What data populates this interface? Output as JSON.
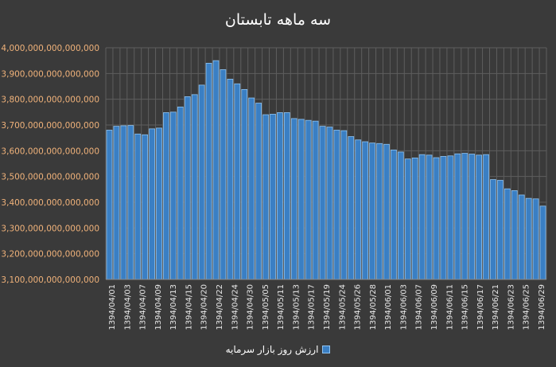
{
  "chart_data": {
    "type": "bar",
    "title": "سه ماهه تابستان",
    "xlabel": "",
    "ylabel": "",
    "ylim": [
      3100000000000000,
      4000000000000000
    ],
    "yticks": [
      3100000000000000,
      3200000000000000,
      3300000000000000,
      3400000000000000,
      3500000000000000,
      3600000000000000,
      3700000000000000,
      3800000000000000,
      3900000000000000,
      4000000000000000
    ],
    "ytick_labels": [
      "3,100,000,000,000,000",
      "3,200,000,000,000,000",
      "3,300,000,000,000,000",
      "3,400,000,000,000,000",
      "3,500,000,000,000,000",
      "3,600,000,000,000,000",
      "3,700,000,000,000,000",
      "3,800,000,000,000,000",
      "3,900,000,000,000,000",
      "4,000,000,000,000,000"
    ],
    "grid": true,
    "legend": "bottom",
    "x_tick_labels": [
      "1394/04/01",
      "1394/04/03",
      "1394/04/07",
      "1394/04/09",
      "1394/04/13",
      "1394/04/15",
      "1394/04/20",
      "1394/04/22",
      "1394/04/24",
      "1394/04/30",
      "1394/05/05",
      "1394/05/11",
      "1394/05/13",
      "1394/05/17",
      "1394/05/19",
      "1394/05/24",
      "1394/05/26",
      "1394/05/28",
      "1394/06/01",
      "1394/06/03",
      "1394/06/07",
      "1394/06/09",
      "1394/06/11",
      "1394/06/15",
      "1394/06/17",
      "1394/06/21",
      "1394/06/23",
      "1394/06/25",
      "1394/06/29"
    ],
    "series": [
      {
        "name": "ارزش روز بازار سرمایه",
        "color": "#3a7fc4",
        "values": [
          3680000000000000,
          3695000000000000,
          3697000000000000,
          3698000000000000,
          3665000000000000,
          3662000000000000,
          3685000000000000,
          3688000000000000,
          3748000000000000,
          3750000000000000,
          3770000000000000,
          3810000000000000,
          3818000000000000,
          3855000000000000,
          3940000000000000,
          3950000000000000,
          3915000000000000,
          3878000000000000,
          3860000000000000,
          3838000000000000,
          3805000000000000,
          3785000000000000,
          3740000000000000,
          3742000000000000,
          3748000000000000,
          3748000000000000,
          3725000000000000,
          3722000000000000,
          3718000000000000,
          3715000000000000,
          3695000000000000,
          3692000000000000,
          3680000000000000,
          3678000000000000,
          3655000000000000,
          3642000000000000,
          3635000000000000,
          3630000000000000,
          3628000000000000,
          3625000000000000,
          3603000000000000,
          3595000000000000,
          3568000000000000,
          3572000000000000,
          3585000000000000,
          3583000000000000,
          3573000000000000,
          3578000000000000,
          3580000000000000,
          3588000000000000,
          3590000000000000,
          3587000000000000,
          3583000000000000,
          3585000000000000,
          3488000000000000,
          3485000000000000,
          3452000000000000,
          3445000000000000,
          3428000000000000,
          3415000000000000,
          3413000000000000,
          3385000000000000
        ]
      }
    ]
  }
}
